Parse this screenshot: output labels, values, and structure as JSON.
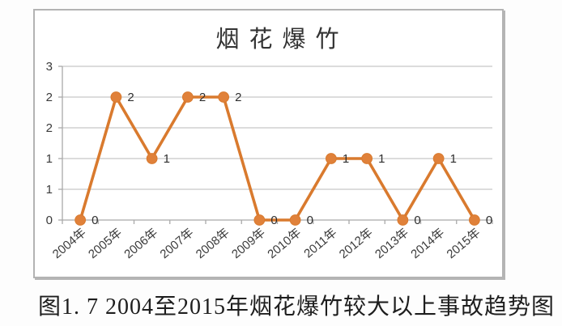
{
  "figure": {
    "caption": "图1. 7 2004至2015年烟花爆竹较大以上事故趋势图"
  },
  "chart_data": {
    "type": "line",
    "title": "烟花爆竹",
    "categories": [
      "2004年",
      "2005年",
      "2006年",
      "2007年",
      "2008年",
      "2009年",
      "2010年",
      "2011年",
      "2012年",
      "2013年",
      "2014年",
      "2015年"
    ],
    "series": [
      {
        "name": "烟花爆竹",
        "values": [
          0,
          2,
          1,
          2,
          2,
          0,
          0,
          1,
          1,
          0,
          1,
          0
        ]
      }
    ],
    "point_labels": [
      "0",
      "2",
      "1",
      "2",
      "2",
      "0",
      "0",
      "1",
      "1",
      "0",
      "1",
      "0"
    ],
    "y_tick_labels_bottom_to_top": [
      "0",
      "1",
      "1",
      "2",
      "2",
      "3"
    ],
    "ylim": [
      0,
      2.5
    ],
    "y_tick_step": 0.5,
    "xlabel": "",
    "ylabel": "",
    "grid": "horizontal",
    "legend": "none",
    "colors": {
      "line": "#d97a2e",
      "marker": "#e0813a",
      "grid": "#c6c6c6",
      "axis": "#a9a9a9",
      "tick_text": "#3a3a3a",
      "point_label_text": "#2e2e2e",
      "title_text": "#333333"
    }
  }
}
